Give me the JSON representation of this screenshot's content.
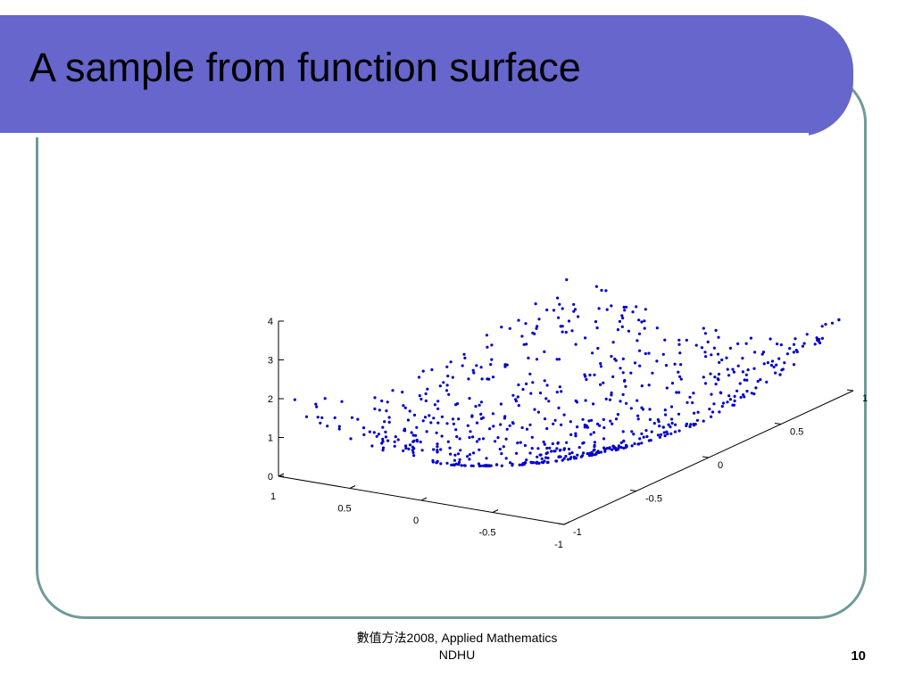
{
  "slide": {
    "title": "A sample from function surface",
    "footer_line1": "數值方法2008, Applied Mathematics",
    "footer_line2": "NDHU",
    "page_number": "10"
  },
  "colors": {
    "title_bar": "#6666cc",
    "frame_border": "#6f9a9a",
    "points": "#0000cc"
  },
  "chart_data": {
    "type": "scatter",
    "function": "z = x^2 + y^2",
    "samples": 700,
    "x_range": [
      -1,
      1
    ],
    "y_range": [
      -1,
      1
    ],
    "z_range": [
      0,
      4
    ],
    "grid": false,
    "x_ticks": [
      "1",
      "0.5",
      "0",
      "-0.5",
      "-1"
    ],
    "y_ticks": [
      "-1",
      "-0.5",
      "0",
      "0.5",
      "1"
    ],
    "z_ticks": [
      "0",
      "1",
      "2",
      "3",
      "4"
    ],
    "title": "",
    "xlabel": "",
    "ylabel": "",
    "zlabel": ""
  }
}
